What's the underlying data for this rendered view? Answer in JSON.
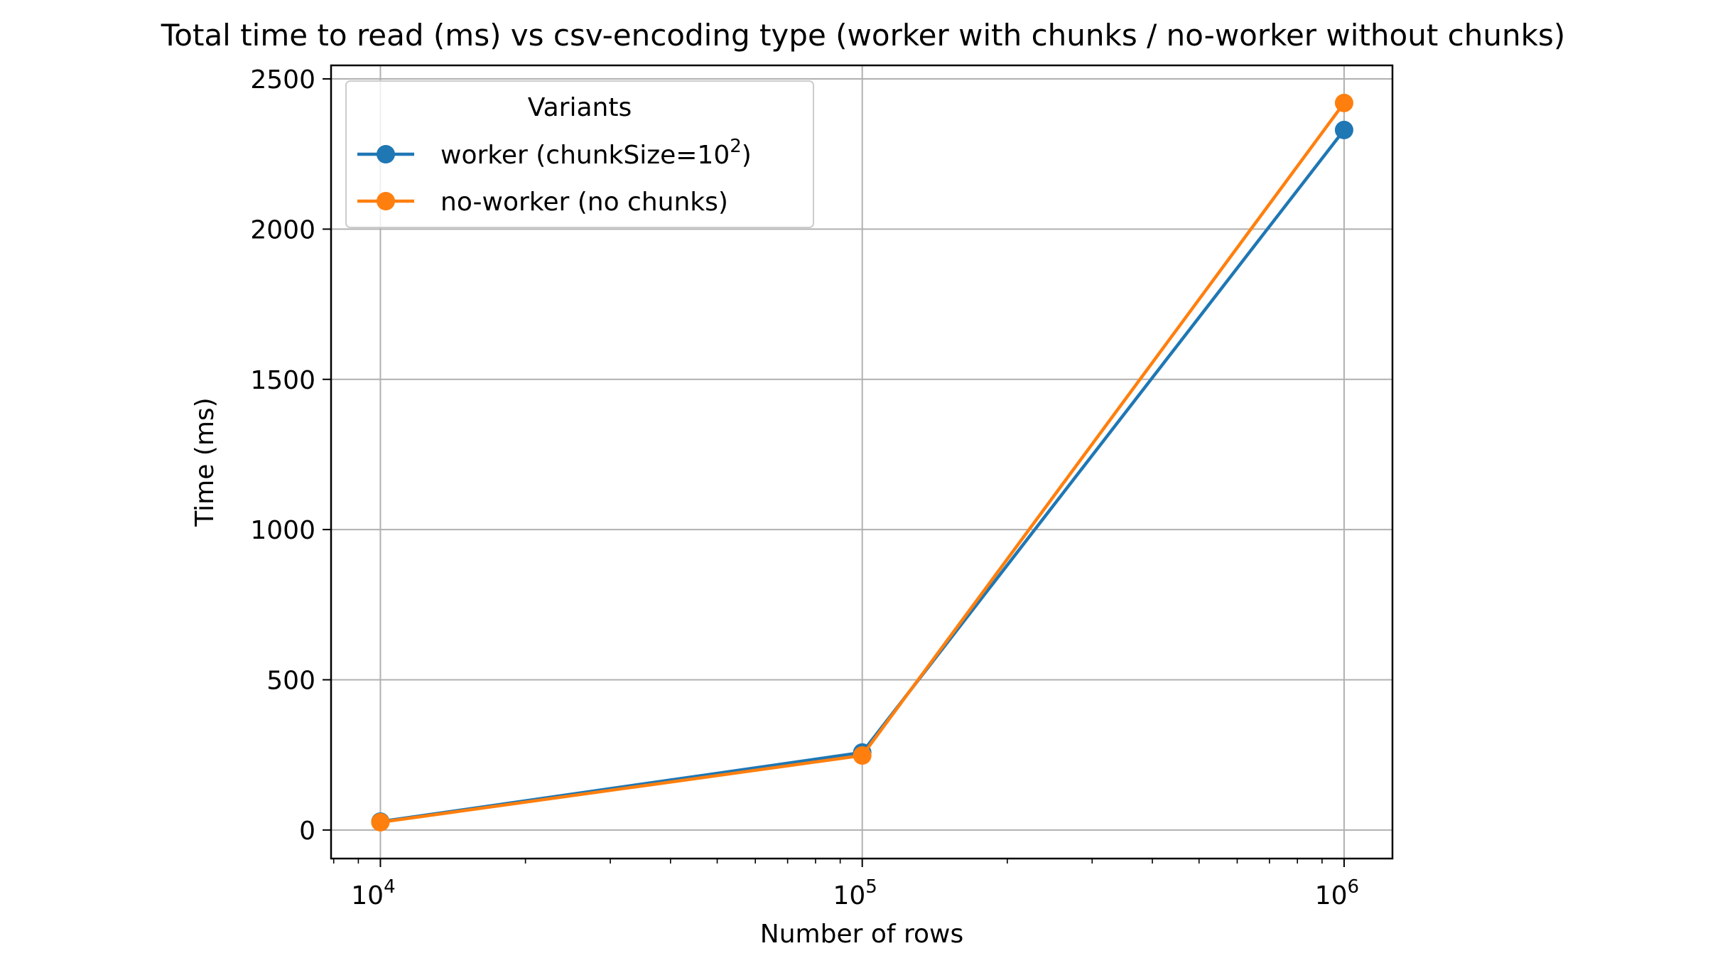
{
  "chart_data": {
    "type": "line",
    "title": "Total time to read (ms) vs csv-encoding type (worker with chunks / no-worker without chunks)",
    "xlabel": "Number of rows",
    "ylabel": "Time (ms)",
    "x_scale": "log",
    "xlim": [
      7900,
      1260000
    ],
    "ylim": [
      -95,
      2545
    ],
    "grid": true,
    "x_ticks": [
      {
        "value": 10000,
        "base": "10",
        "exp": "4"
      },
      {
        "value": 100000,
        "base": "10",
        "exp": "5"
      },
      {
        "value": 1000000,
        "base": "10",
        "exp": "6"
      }
    ],
    "y_ticks": [
      0,
      500,
      1000,
      1500,
      2000,
      2500
    ],
    "legend": {
      "title": "Variants",
      "placement": "top-left"
    },
    "x": [
      10000,
      100000,
      1000000
    ],
    "series": [
      {
        "name_prefix": "worker (chunkSize=10",
        "name_sup": "2",
        "name_suffix": ")",
        "color": "#1f77b4",
        "values": [
          28,
          258,
          2330
        ]
      },
      {
        "name_prefix": "no-worker (no chunks)",
        "name_sup": "",
        "name_suffix": "",
        "color": "#ff7f0e",
        "values": [
          26,
          248,
          2420
        ]
      }
    ]
  }
}
